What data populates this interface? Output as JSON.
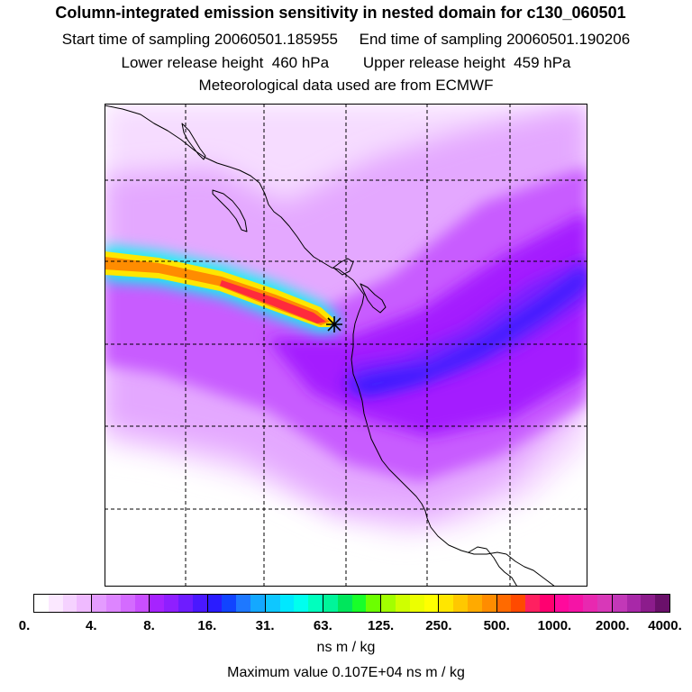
{
  "title": "Column-integrated emission sensitivity in nested domain for c130_060501",
  "line2": "Start time of sampling 20060501.185955     End time of sampling 20060501.190206",
  "line3": "Lower release height  460 hPa        Upper release height  459 hPa",
  "line4": "Meteorological data used are from ECMWF",
  "colorbar": {
    "labels": [
      "0.",
      "4.",
      "8.",
      "16.",
      "31.",
      "63.",
      "125.",
      "250.",
      "500.",
      "1000.",
      "2000.",
      "4000."
    ],
    "groups": [
      [
        "#ffffff",
        "#fbe8ff",
        "#f5d2ff",
        "#efbaff"
      ],
      [
        "#e49cff",
        "#dd85ff",
        "#d46bff",
        "#c94fff"
      ],
      [
        "#a623ff",
        "#8f1fff",
        "#6e1cff",
        "#4a18ff"
      ],
      [
        "#2a1cff",
        "#1144ff",
        "#1e78ff",
        "#14a8ff"
      ],
      [
        "#0fc7ff",
        "#00e8ff",
        "#00ffee",
        "#00ffbe"
      ],
      [
        "#00f59a",
        "#00e65c",
        "#18ff2a",
        "#6cff00"
      ],
      [
        "#a2ff00",
        "#cfff00",
        "#ecff00",
        "#ffff00"
      ],
      [
        "#ffe600",
        "#ffc800",
        "#ffaa00",
        "#ff8c00"
      ],
      [
        "#ff6a00",
        "#ff4a00",
        "#ff2060",
        "#ff0070"
      ],
      [
        "#ff0a9c",
        "#f514a6",
        "#e828b0",
        "#d838b8"
      ],
      [
        "#c238b8",
        "#a828a8",
        "#8c1c8c",
        "#6a106a"
      ]
    ],
    "unit": "ns m / kg"
  },
  "max_value_text": "Maximum value  0.107E+04 ns m / kg",
  "map": {
    "colors": {
      "light": "#f6dcff",
      "lavender": "#e4a8ff",
      "magenta": "#c85cff",
      "purple": "#a41cff",
      "violet": "#7a24ff",
      "blue": "#3a1cff",
      "plume_outer": "#00ffee",
      "plume_mid": "#ffe600",
      "plume_core": "#ff8c00",
      "plume_hot": "#ff2a3c",
      "marker": "#000000"
    },
    "release_marker": "asterisk-marker"
  }
}
